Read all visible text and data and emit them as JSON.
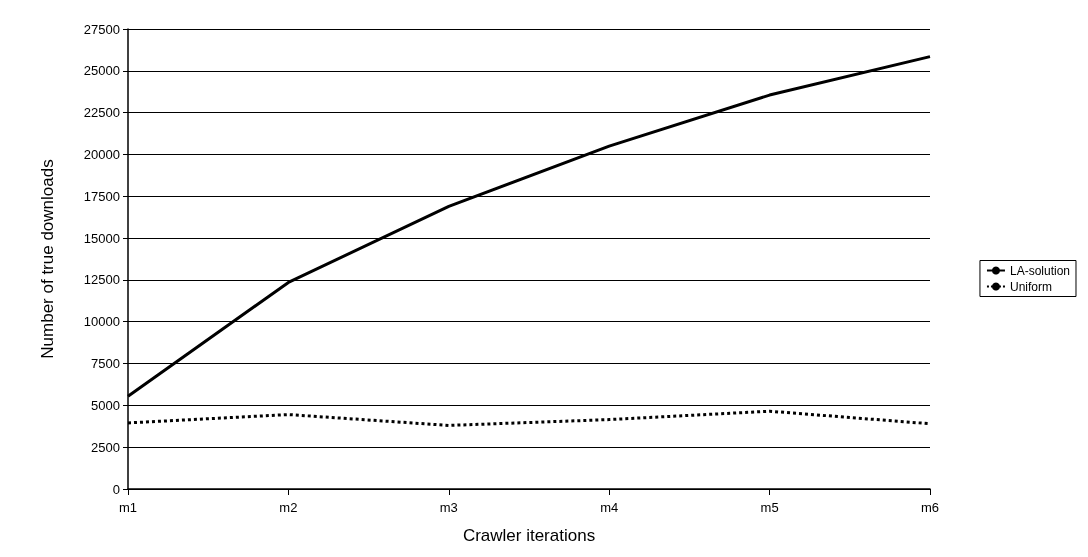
{
  "chart_data": {
    "type": "line",
    "xlabel": "Crawler iterations",
    "ylabel": "Number of true downloads",
    "categories": [
      "m1",
      "m2",
      "m3",
      "m4",
      "m5",
      "m6"
    ],
    "series": [
      {
        "name": "LA-solution",
        "color": "#000000",
        "line_style": "solid",
        "values": [
          5550,
          12350,
          16900,
          20500,
          23550,
          25850
        ]
      },
      {
        "name": "Uniform",
        "color": "#000000",
        "line_style": "dotted",
        "values": [
          3950,
          4450,
          3800,
          4150,
          4650,
          3900
        ]
      }
    ],
    "ylim": [
      0,
      27500
    ],
    "yticks": [
      0,
      2500,
      5000,
      7500,
      10000,
      12500,
      15000,
      17500,
      20000,
      22500,
      25000,
      27500
    ],
    "grid": "y",
    "legend": "right",
    "marker": "none"
  }
}
